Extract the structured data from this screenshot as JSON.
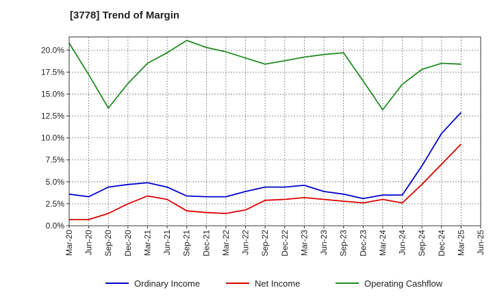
{
  "chart_data": {
    "type": "line",
    "title": "[3778]  Trend of Margin",
    "xlabel": "",
    "ylabel": "",
    "categories": [
      "Mar-20",
      "Jun-20",
      "Sep-20",
      "Dec-20",
      "Mar-21",
      "Jun-21",
      "Sep-21",
      "Dec-21",
      "Mar-22",
      "Jun-22",
      "Sep-22",
      "Dec-22",
      "Mar-23",
      "Jun-23",
      "Sep-23",
      "Dec-23",
      "Mar-24",
      "Jun-24",
      "Sep-24",
      "Dec-24",
      "Mar-25",
      "Jun-25"
    ],
    "ylim": [
      0,
      21.5
    ],
    "yticks": [
      0,
      2.5,
      5,
      7.5,
      10,
      12.5,
      15,
      17.5,
      20
    ],
    "ytick_labels": [
      "0.0%",
      "2.5%",
      "5.0%",
      "7.5%",
      "10.0%",
      "12.5%",
      "15.0%",
      "17.5%",
      "20.0%"
    ],
    "grid": true,
    "legend_position": "bottom",
    "series": [
      {
        "name": "Ordinary Income",
        "color": "#0000cc",
        "values": [
          3.6,
          3.3,
          4.4,
          4.7,
          4.9,
          4.4,
          3.4,
          3.3,
          3.3,
          3.9,
          4.4,
          4.4,
          4.6,
          3.9,
          3.6,
          3.1,
          3.5,
          3.5,
          6.8,
          10.5,
          12.9,
          null
        ]
      },
      {
        "name": "Net Income",
        "color": "#dd0000",
        "values": [
          0.7,
          0.7,
          1.4,
          2.5,
          3.4,
          3.0,
          1.7,
          1.5,
          1.4,
          1.8,
          2.9,
          3.0,
          3.2,
          3.0,
          2.8,
          2.6,
          3.0,
          2.6,
          4.7,
          7.0,
          9.3,
          null
        ]
      },
      {
        "name": "Operating Cashflow",
        "color": "#228b22",
        "values": [
          20.8,
          17.2,
          13.4,
          16.2,
          18.5,
          19.7,
          21.1,
          20.3,
          19.8,
          19.1,
          18.4,
          18.8,
          19.2,
          19.5,
          19.7,
          16.5,
          13.2,
          16.1,
          17.8,
          18.5,
          18.4,
          null
        ]
      }
    ]
  }
}
